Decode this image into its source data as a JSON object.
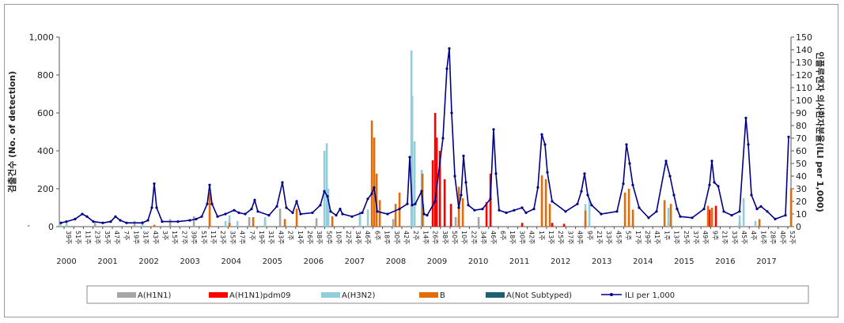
{
  "chart_data": {
    "type": "bar",
    "title": "",
    "ylabel_left": "검출건수 (No. of detection)",
    "ylabel_right": "인플루엔자 의사환자분율(ILI per 1,000)",
    "ylim_left": [
      0,
      1000
    ],
    "ylim_right": [
      0,
      150
    ],
    "yticks_left": [
      "0",
      "200",
      "400",
      "600",
      "800",
      "1,000"
    ],
    "yticks_right": [
      "0",
      "10",
      "20",
      "30",
      "40",
      "50",
      "60",
      "70",
      "80",
      "90",
      "100",
      "110",
      "120",
      "130",
      "140",
      "150"
    ],
    "week_labels": [
      "39주",
      "51주",
      "11주",
      "23주",
      "35주",
      "47주",
      "7주",
      "19주",
      "31주",
      "43주",
      "3주",
      "15주",
      "27주",
      "39주",
      "51주",
      "11주",
      "23주",
      "35주",
      "47주",
      "7주",
      "19주",
      "31주",
      "43주",
      "2주",
      "14주",
      "26주",
      "38주",
      "50주",
      "10주",
      "22주",
      "34주",
      "46주",
      "6주",
      "18주",
      "30주",
      "42주",
      "2주",
      "14주",
      "26주",
      "38주",
      "50주",
      "10주",
      "22주",
      "34주",
      "46주",
      "6주",
      "18주",
      "30주",
      "42주",
      "1주",
      "13주",
      "25주",
      "37주",
      "49주",
      "9주",
      "21주",
      "33주",
      "45주",
      "5주",
      "17주",
      "29주",
      "41주",
      "1주",
      "13주",
      "25주",
      "37주",
      "49주",
      "9주",
      "21주",
      "33주",
      "45주",
      "4주",
      "16주",
      "28주",
      "40주",
      "52주"
    ],
    "years": [
      "2000",
      "2001",
      "2002",
      "2003",
      "2004",
      "2005",
      "2006",
      "2007",
      "2008",
      "2009",
      "2010",
      "2011",
      "2012",
      "2013",
      "2014",
      "2015",
      "2016",
      "2017"
    ],
    "series": [
      {
        "name": "A(H1N1)",
        "kind": "bar",
        "color": "#a6a6a6",
        "points": [
          [
            36,
            8
          ],
          [
            120,
            20
          ],
          [
            170,
            30
          ],
          [
            215,
            40
          ],
          [
            245,
            55
          ],
          [
            265,
            75
          ],
          [
            290,
            40
          ],
          [
            315,
            50
          ],
          [
            335,
            40
          ],
          [
            354,
            95
          ],
          [
            400,
            45
          ],
          [
            455,
            80
          ],
          [
            497,
            40
          ],
          [
            534,
            60
          ],
          [
            576,
            50
          ],
          [
            605,
            50
          ]
        ]
      },
      {
        "name": "A(H1N1)pdm09",
        "kind": "bar",
        "color": "#ff0000",
        "points": [
          [
            547,
            350
          ],
          [
            550,
            600
          ],
          [
            552,
            470
          ],
          [
            556,
            400
          ],
          [
            562,
            250
          ],
          [
            570,
            120
          ],
          [
            580,
            40
          ],
          [
            615,
            130
          ],
          [
            620,
            280
          ],
          [
            660,
            20
          ],
          [
            698,
            20
          ],
          [
            713,
            15
          ],
          [
            740,
            30
          ],
          [
            800,
            15
          ],
          [
            845,
            20
          ],
          [
            897,
            90
          ],
          [
            905,
            110
          ],
          [
            935,
            20
          ]
        ]
      },
      {
        "name": "A(H3N2)",
        "kind": "bar",
        "color": "#92cddc",
        "points": [
          [
            76,
            25
          ],
          [
            84,
            20
          ],
          [
            180,
            30
          ],
          [
            285,
            30
          ],
          [
            290,
            60
          ],
          [
            300,
            30
          ],
          [
            335,
            50
          ],
          [
            410,
            400
          ],
          [
            413,
            440
          ],
          [
            415,
            200
          ],
          [
            455,
            70
          ],
          [
            465,
            90
          ],
          [
            520,
            930
          ],
          [
            521,
            690
          ],
          [
            524,
            450
          ],
          [
            533,
            300
          ],
          [
            535,
            120
          ],
          [
            685,
            200
          ],
          [
            740,
            120
          ],
          [
            745,
            150
          ],
          [
            795,
            60
          ],
          [
            845,
            100
          ],
          [
            935,
            60
          ],
          [
            940,
            150
          ],
          [
            955,
            30
          ],
          [
            1000,
            90
          ]
        ]
      },
      {
        "name": "B",
        "kind": "bar",
        "color": "#e36c0a",
        "points": [
          [
            195,
            10
          ],
          [
            265,
            180
          ],
          [
            290,
            20
          ],
          [
            320,
            50
          ],
          [
            360,
            40
          ],
          [
            375,
            95
          ],
          [
            420,
            55
          ],
          [
            470,
            560
          ],
          [
            473,
            470
          ],
          [
            476,
            280
          ],
          [
            480,
            140
          ],
          [
            500,
            120
          ],
          [
            505,
            180
          ],
          [
            534,
            280
          ],
          [
            580,
            210
          ],
          [
            585,
            150
          ],
          [
            685,
            270
          ],
          [
            690,
            250
          ],
          [
            695,
            120
          ],
          [
            740,
            85
          ],
          [
            790,
            180
          ],
          [
            795,
            200
          ],
          [
            800,
            90
          ],
          [
            840,
            140
          ],
          [
            848,
            120
          ],
          [
            895,
            110
          ],
          [
            900,
            100
          ],
          [
            960,
            40
          ],
          [
            1000,
            200
          ]
        ]
      },
      {
        "name": "A(Not Subtyped)",
        "kind": "bar",
        "color": "#1f5f6e",
        "points": []
      },
      {
        "name": "ILI per 1,000",
        "kind": "line",
        "axis": "right",
        "color": "#00008b",
        "points": [
          [
            77,
            3
          ],
          [
            84,
            4
          ],
          [
            95,
            6
          ],
          [
            104,
            10
          ],
          [
            110,
            8
          ],
          [
            118,
            4
          ],
          [
            130,
            3
          ],
          [
            140,
            4
          ],
          [
            146,
            8
          ],
          [
            152,
            5
          ],
          [
            160,
            3
          ],
          [
            180,
            3
          ],
          [
            187,
            5
          ],
          [
            192,
            15
          ],
          [
            195,
            34
          ],
          [
            198,
            15
          ],
          [
            205,
            4
          ],
          [
            225,
            4
          ],
          [
            240,
            5
          ],
          [
            248,
            6
          ],
          [
            255,
            8
          ],
          [
            262,
            18
          ],
          [
            265,
            33
          ],
          [
            268,
            18
          ],
          [
            275,
            8
          ],
          [
            285,
            10
          ],
          [
            296,
            13
          ],
          [
            302,
            11
          ],
          [
            310,
            10
          ],
          [
            318,
            14
          ],
          [
            322,
            21
          ],
          [
            326,
            12
          ],
          [
            340,
            9
          ],
          [
            350,
            16
          ],
          [
            357,
            35
          ],
          [
            362,
            15
          ],
          [
            370,
            11
          ],
          [
            375,
            20
          ],
          [
            380,
            10
          ],
          [
            395,
            11
          ],
          [
            405,
            17
          ],
          [
            410,
            28
          ],
          [
            414,
            24
          ],
          [
            418,
            12
          ],
          [
            425,
            9
          ],
          [
            430,
            14
          ],
          [
            433,
            10
          ],
          [
            445,
            8
          ],
          [
            458,
            11
          ],
          [
            465,
            22
          ],
          [
            470,
            26
          ],
          [
            473,
            31
          ],
          [
            477,
            12
          ],
          [
            490,
            10
          ],
          [
            505,
            14
          ],
          [
            515,
            18
          ],
          [
            518,
            55
          ],
          [
            521,
            17
          ],
          [
            525,
            18
          ],
          [
            533,
            28
          ],
          [
            536,
            10
          ],
          [
            540,
            9
          ],
          [
            550,
            20
          ],
          [
            560,
            70
          ],
          [
            565,
            125
          ],
          [
            568,
            141
          ],
          [
            571,
            90
          ],
          [
            575,
            40
          ],
          [
            580,
            15
          ],
          [
            583,
            25
          ],
          [
            586,
            56
          ],
          [
            589,
            35
          ],
          [
            592,
            17
          ],
          [
            600,
            13
          ],
          [
            610,
            14
          ],
          [
            620,
            22
          ],
          [
            624,
            77
          ],
          [
            627,
            42
          ],
          [
            631,
            13
          ],
          [
            640,
            11
          ],
          [
            650,
            13
          ],
          [
            660,
            15
          ],
          [
            665,
            11
          ],
          [
            675,
            14
          ],
          [
            680,
            31
          ],
          [
            685,
            73
          ],
          [
            689,
            65
          ],
          [
            692,
            43
          ],
          [
            698,
            20
          ],
          [
            715,
            12
          ],
          [
            730,
            18
          ],
          [
            735,
            28
          ],
          [
            739,
            42
          ],
          [
            743,
            25
          ],
          [
            748,
            17
          ],
          [
            760,
            10
          ],
          [
            780,
            12
          ],
          [
            788,
            34
          ],
          [
            792,
            65
          ],
          [
            796,
            50
          ],
          [
            800,
            33
          ],
          [
            808,
            15
          ],
          [
            820,
            7
          ],
          [
            830,
            12
          ],
          [
            842,
            52
          ],
          [
            847,
            40
          ],
          [
            852,
            25
          ],
          [
            856,
            14
          ],
          [
            860,
            8
          ],
          [
            875,
            7
          ],
          [
            890,
            14
          ],
          [
            897,
            33
          ],
          [
            900,
            52
          ],
          [
            903,
            35
          ],
          [
            908,
            32
          ],
          [
            915,
            12
          ],
          [
            925,
            9
          ],
          [
            935,
            12
          ],
          [
            943,
            86
          ],
          [
            946,
            65
          ],
          [
            950,
            25
          ],
          [
            957,
            14
          ],
          [
            962,
            16
          ],
          [
            970,
            12
          ],
          [
            980,
            6
          ],
          [
            993,
            9
          ],
          [
            997,
            71
          ]
        ]
      }
    ],
    "legend": [
      "A(H1N1)",
      "A(H1N1)pdm09",
      "A(H3N2)",
      "B",
      "A(Not Subtyped)",
      "ILI per 1,000"
    ],
    "legend_position": "bottom",
    "grid": false
  }
}
